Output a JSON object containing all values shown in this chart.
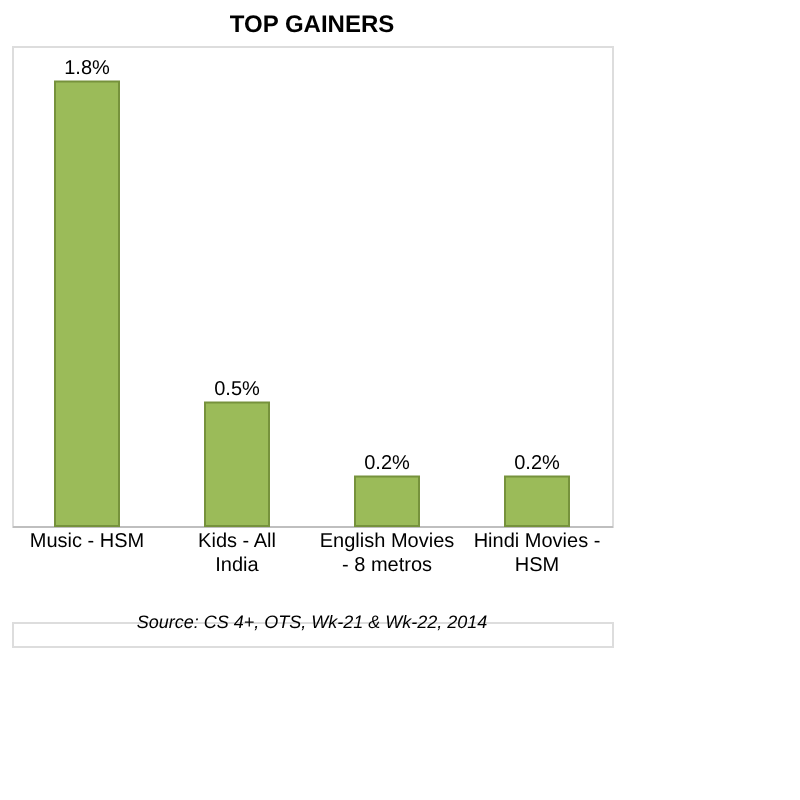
{
  "chart_data": {
    "type": "bar",
    "title": "TOP GAINERS",
    "categories": [
      "Music - HSM",
      "Kids - All India",
      "English Movies - 8 metros",
      "Hindi Movies - HSM"
    ],
    "values": [
      1.8,
      0.5,
      0.2,
      0.2
    ],
    "value_labels": [
      "1.8%",
      "0.5%",
      "0.2%",
      "0.2%"
    ],
    "color": "#9bbb59",
    "grid": false,
    "annotations": [
      "Source: CS 4+, OTS, Wk-21 & Wk-22, 2014"
    ]
  }
}
